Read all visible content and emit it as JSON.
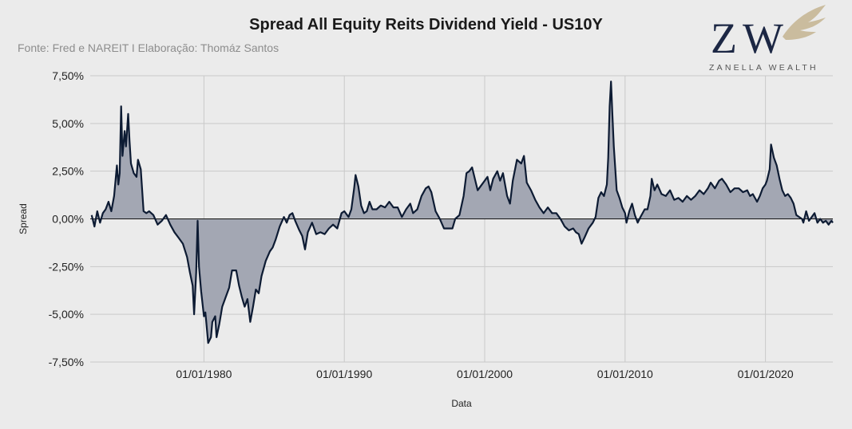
{
  "chart_data": {
    "type": "area",
    "title": "Spread All Equity Reits Dividend Yield - US10Y",
    "subtitle": "Fonte: Fred e NAREIT I Elaboração: Thomáz Santos",
    "xlabel": "Data",
    "ylabel": "Spread",
    "x_ticks": [
      "01/01/1980",
      "01/01/1990",
      "01/01/2000",
      "01/01/2010",
      "01/01/2020"
    ],
    "y_ticks": [
      "7,50%",
      "5,00%",
      "2,50%",
      "0,00%",
      "-2,50%",
      "-5,00%",
      "-7,50%"
    ],
    "xlim": [
      1971.9,
      2024.8
    ],
    "ylim": [
      -7.5,
      7.5
    ],
    "grid": true,
    "series": [
      {
        "color": "#0d1b33",
        "fill": "#a3a7b3",
        "points": [
          [
            1972.0,
            0.2
          ],
          [
            1972.2,
            -0.4
          ],
          [
            1972.4,
            0.4
          ],
          [
            1972.6,
            -0.2
          ],
          [
            1972.8,
            0.3
          ],
          [
            1973.0,
            0.5
          ],
          [
            1973.2,
            0.9
          ],
          [
            1973.4,
            0.4
          ],
          [
            1973.6,
            1.2
          ],
          [
            1973.8,
            2.8
          ],
          [
            1973.9,
            1.8
          ],
          [
            1974.0,
            2.4
          ],
          [
            1974.1,
            5.9
          ],
          [
            1974.2,
            3.3
          ],
          [
            1974.35,
            4.6
          ],
          [
            1974.45,
            3.8
          ],
          [
            1974.6,
            5.5
          ],
          [
            1974.7,
            4.1
          ],
          [
            1974.8,
            2.9
          ],
          [
            1975.0,
            2.4
          ],
          [
            1975.2,
            2.2
          ],
          [
            1975.3,
            3.1
          ],
          [
            1975.5,
            2.6
          ],
          [
            1975.7,
            0.4
          ],
          [
            1975.9,
            0.3
          ],
          [
            1976.1,
            0.4
          ],
          [
            1976.4,
            0.2
          ],
          [
            1976.7,
            -0.3
          ],
          [
            1977.0,
            -0.1
          ],
          [
            1977.3,
            0.2
          ],
          [
            1977.6,
            -0.3
          ],
          [
            1977.9,
            -0.7
          ],
          [
            1978.2,
            -1.0
          ],
          [
            1978.5,
            -1.3
          ],
          [
            1978.8,
            -2.0
          ],
          [
            1979.0,
            -2.8
          ],
          [
            1979.2,
            -3.5
          ],
          [
            1979.3,
            -5.0
          ],
          [
            1979.45,
            -2.8
          ],
          [
            1979.55,
            -0.1
          ],
          [
            1979.65,
            -2.5
          ],
          [
            1979.8,
            -3.8
          ],
          [
            1980.0,
            -5.1
          ],
          [
            1980.1,
            -4.9
          ],
          [
            1980.3,
            -6.5
          ],
          [
            1980.5,
            -6.2
          ],
          [
            1980.6,
            -5.4
          ],
          [
            1980.8,
            -5.1
          ],
          [
            1980.9,
            -6.2
          ],
          [
            1981.1,
            -5.5
          ],
          [
            1981.3,
            -4.6
          ],
          [
            1981.5,
            -4.2
          ],
          [
            1981.8,
            -3.6
          ],
          [
            1982.0,
            -2.7
          ],
          [
            1982.3,
            -2.7
          ],
          [
            1982.5,
            -3.5
          ],
          [
            1982.7,
            -4.1
          ],
          [
            1982.9,
            -4.6
          ],
          [
            1983.1,
            -4.2
          ],
          [
            1983.3,
            -5.4
          ],
          [
            1983.5,
            -4.6
          ],
          [
            1983.7,
            -3.7
          ],
          [
            1983.9,
            -3.9
          ],
          [
            1984.1,
            -3.0
          ],
          [
            1984.4,
            -2.2
          ],
          [
            1984.7,
            -1.7
          ],
          [
            1984.9,
            -1.5
          ],
          [
            1985.1,
            -1.1
          ],
          [
            1985.4,
            -0.4
          ],
          [
            1985.7,
            0.1
          ],
          [
            1985.9,
            -0.2
          ],
          [
            1986.1,
            0.2
          ],
          [
            1986.3,
            0.3
          ],
          [
            1986.5,
            -0.1
          ],
          [
            1986.8,
            -0.6
          ],
          [
            1987.0,
            -0.9
          ],
          [
            1987.2,
            -1.6
          ],
          [
            1987.4,
            -0.7
          ],
          [
            1987.7,
            -0.2
          ],
          [
            1988.0,
            -0.8
          ],
          [
            1988.3,
            -0.7
          ],
          [
            1988.6,
            -0.8
          ],
          [
            1988.9,
            -0.5
          ],
          [
            1989.2,
            -0.3
          ],
          [
            1989.5,
            -0.5
          ],
          [
            1989.8,
            0.3
          ],
          [
            1990.0,
            0.4
          ],
          [
            1990.3,
            0.1
          ],
          [
            1990.5,
            0.5
          ],
          [
            1990.7,
            1.6
          ],
          [
            1990.8,
            2.3
          ],
          [
            1991.0,
            1.7
          ],
          [
            1991.2,
            0.7
          ],
          [
            1991.4,
            0.3
          ],
          [
            1991.6,
            0.4
          ],
          [
            1991.8,
            0.9
          ],
          [
            1992.0,
            0.5
          ],
          [
            1992.3,
            0.5
          ],
          [
            1992.6,
            0.7
          ],
          [
            1992.9,
            0.6
          ],
          [
            1993.2,
            0.9
          ],
          [
            1993.5,
            0.6
          ],
          [
            1993.8,
            0.6
          ],
          [
            1994.1,
            0.1
          ],
          [
            1994.4,
            0.5
          ],
          [
            1994.7,
            0.8
          ],
          [
            1994.9,
            0.3
          ],
          [
            1995.2,
            0.5
          ],
          [
            1995.5,
            1.2
          ],
          [
            1995.8,
            1.6
          ],
          [
            1996.0,
            1.7
          ],
          [
            1996.2,
            1.4
          ],
          [
            1996.5,
            0.4
          ],
          [
            1996.8,
            0.0
          ],
          [
            1997.1,
            -0.5
          ],
          [
            1997.4,
            -0.5
          ],
          [
            1997.7,
            -0.5
          ],
          [
            1997.9,
            0.0
          ],
          [
            1998.2,
            0.2
          ],
          [
            1998.5,
            1.2
          ],
          [
            1998.7,
            2.4
          ],
          [
            1998.9,
            2.5
          ],
          [
            1999.1,
            2.7
          ],
          [
            1999.3,
            2.1
          ],
          [
            1999.5,
            1.5
          ],
          [
            1999.7,
            1.7
          ],
          [
            2000.0,
            2.0
          ],
          [
            2000.2,
            2.2
          ],
          [
            2000.4,
            1.5
          ],
          [
            2000.6,
            2.1
          ],
          [
            2000.9,
            2.5
          ],
          [
            2001.1,
            2.0
          ],
          [
            2001.3,
            2.4
          ],
          [
            2001.6,
            1.2
          ],
          [
            2001.8,
            0.8
          ],
          [
            2002.0,
            2.0
          ],
          [
            2002.3,
            3.1
          ],
          [
            2002.6,
            2.9
          ],
          [
            2002.8,
            3.3
          ],
          [
            2003.0,
            1.9
          ],
          [
            2003.3,
            1.5
          ],
          [
            2003.6,
            1.0
          ],
          [
            2003.9,
            0.6
          ],
          [
            2004.2,
            0.3
          ],
          [
            2004.5,
            0.6
          ],
          [
            2004.8,
            0.3
          ],
          [
            2005.1,
            0.3
          ],
          [
            2005.4,
            0.0
          ],
          [
            2005.7,
            -0.4
          ],
          [
            2006.0,
            -0.6
          ],
          [
            2006.3,
            -0.5
          ],
          [
            2006.5,
            -0.7
          ],
          [
            2006.7,
            -0.8
          ],
          [
            2006.9,
            -1.3
          ],
          [
            2007.1,
            -1.0
          ],
          [
            2007.4,
            -0.5
          ],
          [
            2007.7,
            -0.2
          ],
          [
            2007.9,
            0.1
          ],
          [
            2008.1,
            1.1
          ],
          [
            2008.3,
            1.4
          ],
          [
            2008.5,
            1.2
          ],
          [
            2008.7,
            1.8
          ],
          [
            2008.8,
            3.2
          ],
          [
            2008.9,
            5.9
          ],
          [
            2009.0,
            7.2
          ],
          [
            2009.1,
            5.4
          ],
          [
            2009.2,
            3.8
          ],
          [
            2009.4,
            1.5
          ],
          [
            2009.6,
            1.1
          ],
          [
            2009.8,
            0.6
          ],
          [
            2010.0,
            0.3
          ],
          [
            2010.1,
            -0.2
          ],
          [
            2010.3,
            0.4
          ],
          [
            2010.5,
            0.8
          ],
          [
            2010.7,
            0.2
          ],
          [
            2010.9,
            -0.2
          ],
          [
            2011.1,
            0.1
          ],
          [
            2011.4,
            0.5
          ],
          [
            2011.6,
            0.5
          ],
          [
            2011.8,
            1.2
          ],
          [
            2011.9,
            2.1
          ],
          [
            2012.1,
            1.5
          ],
          [
            2012.3,
            1.8
          ],
          [
            2012.6,
            1.3
          ],
          [
            2012.9,
            1.2
          ],
          [
            2013.2,
            1.5
          ],
          [
            2013.5,
            1.0
          ],
          [
            2013.8,
            1.1
          ],
          [
            2014.1,
            0.9
          ],
          [
            2014.4,
            1.2
          ],
          [
            2014.7,
            1.0
          ],
          [
            2015.0,
            1.2
          ],
          [
            2015.3,
            1.5
          ],
          [
            2015.6,
            1.3
          ],
          [
            2015.9,
            1.6
          ],
          [
            2016.1,
            1.9
          ],
          [
            2016.4,
            1.6
          ],
          [
            2016.7,
            2.0
          ],
          [
            2016.9,
            2.1
          ],
          [
            2017.2,
            1.8
          ],
          [
            2017.5,
            1.4
          ],
          [
            2017.8,
            1.6
          ],
          [
            2018.1,
            1.6
          ],
          [
            2018.4,
            1.4
          ],
          [
            2018.7,
            1.5
          ],
          [
            2018.9,
            1.2
          ],
          [
            2019.1,
            1.3
          ],
          [
            2019.4,
            0.9
          ],
          [
            2019.6,
            1.2
          ],
          [
            2019.8,
            1.6
          ],
          [
            2020.0,
            1.8
          ],
          [
            2020.1,
            2.0
          ],
          [
            2020.3,
            2.6
          ],
          [
            2020.4,
            3.9
          ],
          [
            2020.6,
            3.2
          ],
          [
            2020.8,
            2.8
          ],
          [
            2021.0,
            2.1
          ],
          [
            2021.2,
            1.5
          ],
          [
            2021.4,
            1.2
          ],
          [
            2021.6,
            1.3
          ],
          [
            2021.8,
            1.1
          ],
          [
            2022.0,
            0.8
          ],
          [
            2022.2,
            0.2
          ],
          [
            2022.4,
            0.1
          ],
          [
            2022.6,
            0.0
          ],
          [
            2022.7,
            -0.2
          ],
          [
            2022.9,
            0.4
          ],
          [
            2023.1,
            -0.1
          ],
          [
            2023.3,
            0.1
          ],
          [
            2023.5,
            0.3
          ],
          [
            2023.7,
            -0.2
          ],
          [
            2023.9,
            0.0
          ],
          [
            2024.1,
            -0.2
          ],
          [
            2024.3,
            -0.1
          ],
          [
            2024.5,
            -0.3
          ],
          [
            2024.7,
            -0.1
          ],
          [
            2024.8,
            -0.2
          ]
        ]
      }
    ]
  },
  "logo": {
    "text": "ZANELLA WEALTH",
    "color": "#1c2744",
    "wing_color": "#c4b491"
  }
}
